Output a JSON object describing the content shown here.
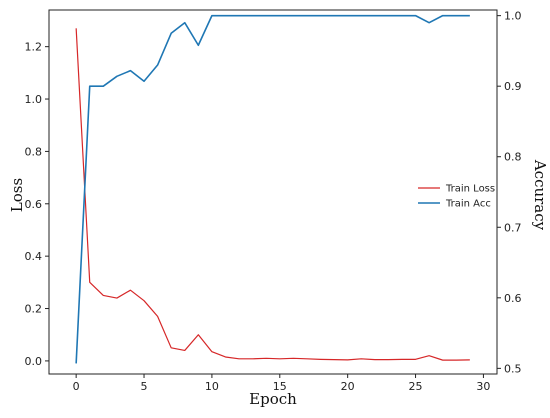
{
  "chart_data": {
    "type": "line",
    "title": "",
    "xlabel": "Epoch",
    "ylabel": "Loss",
    "y2label": "Accuracy",
    "xlim": [
      -2,
      31
    ],
    "ylim": [
      -0.05,
      1.34
    ],
    "y2lim": [
      0.492,
      1.008
    ],
    "xticks": [
      0,
      5,
      10,
      15,
      20,
      25,
      30
    ],
    "yticks": [
      0.0,
      0.2,
      0.4,
      0.6,
      0.8,
      1.0,
      1.2
    ],
    "y2ticks": [
      0.5,
      0.6,
      0.7,
      0.8,
      0.9,
      1.0
    ],
    "grid": false,
    "legend_position": "center-right",
    "x": [
      0,
      1,
      2,
      3,
      4,
      5,
      6,
      7,
      8,
      9,
      10,
      11,
      12,
      13,
      14,
      15,
      16,
      17,
      18,
      19,
      20,
      21,
      22,
      23,
      24,
      25,
      26,
      27,
      28,
      29
    ],
    "series": [
      {
        "name": "Train Loss",
        "axis": "left",
        "color": "#d62728",
        "values": [
          1.27,
          0.3,
          0.25,
          0.24,
          0.27,
          0.23,
          0.17,
          0.05,
          0.04,
          0.1,
          0.035,
          0.015,
          0.008,
          0.008,
          0.01,
          0.008,
          0.01,
          0.008,
          0.006,
          0.005,
          0.004,
          0.008,
          0.005,
          0.005,
          0.006,
          0.006,
          0.02,
          0.003,
          0.003,
          0.004
        ]
      },
      {
        "name": "Train Acc",
        "axis": "right",
        "color": "#1f77b4",
        "values": [
          0.507,
          0.9,
          0.9,
          0.914,
          0.922,
          0.907,
          0.93,
          0.975,
          0.99,
          0.958,
          1.0,
          1.0,
          1.0,
          1.0,
          1.0,
          1.0,
          1.0,
          1.0,
          1.0,
          1.0,
          1.0,
          1.0,
          1.0,
          1.0,
          1.0,
          1.0,
          0.99,
          1.0,
          1.0,
          1.0
        ]
      }
    ]
  }
}
